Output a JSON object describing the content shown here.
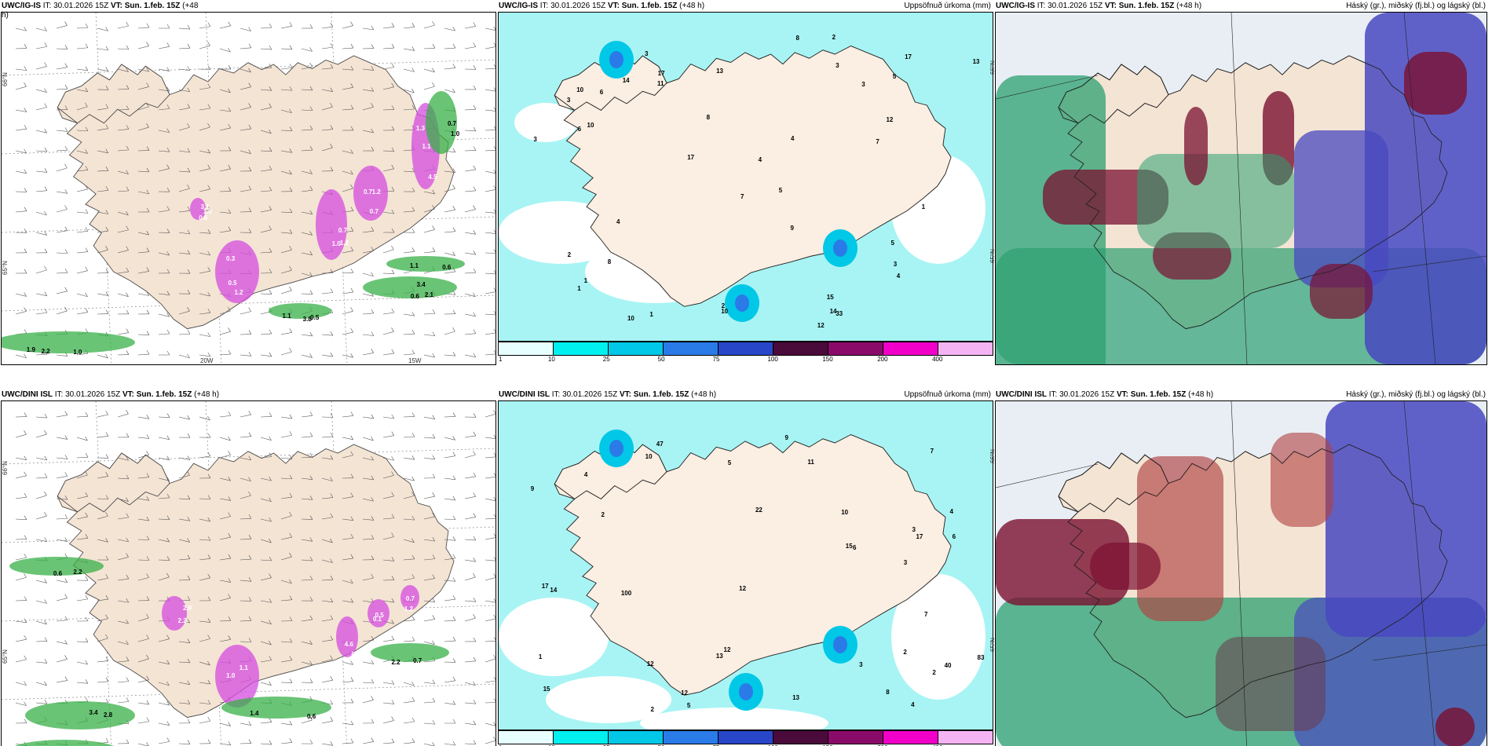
{
  "rows": [
    {
      "wind_panel": {
        "title_model": "UWC/IG-IS",
        "title_it": " IT: 30.01.2026 15Z ",
        "title_vt": "VT: Sun. 1.feb. 15Z",
        "title_lead": " (+48",
        "title_lead_wrap": "h)"
      },
      "precip_panel": {
        "title_model": "UWC/IG-IS",
        "title_it": " IT: 30.01.2026 15Z ",
        "title_vt": "VT: Sun. 1.feb. 15Z",
        "title_lead": " (+48 h)",
        "right_title": "Uppsöfnuð úrkoma (mm)"
      },
      "cloud_panel": {
        "title_model": "UWC/IG-IS",
        "title_it": " IT: 30.01.2026 15Z ",
        "title_vt": "VT: Sun. 1.feb. 15Z",
        "title_lead": " (+48 h)",
        "right_title": "Háský (gr.), miðský (fj.bl.) og lágský (bl.)"
      },
      "wind_values": [
        "1.2",
        "1.0",
        "1.2",
        "1.3",
        "1.0",
        "1.9",
        "0.6",
        "1.1",
        "0.7",
        "1.1",
        "0.5",
        "1.2",
        "0.7",
        "4.5",
        "3.1",
        "1.0",
        "2.1",
        "0.5",
        "1.0",
        "0.6",
        "0.3",
        "0.7",
        "0.7",
        "1.1",
        "0.6",
        "2.2",
        "3.4",
        "3.8"
      ],
      "precip_values": [
        "3",
        "12",
        "14",
        "3",
        "5",
        "1",
        "4",
        "7",
        "3",
        "3",
        "1",
        "2",
        "4",
        "6",
        "2",
        "5",
        "7",
        "17",
        "10",
        "8",
        "8",
        "10",
        "17",
        "15",
        "14",
        "13",
        "17",
        "13",
        "9",
        "10",
        "6",
        "4",
        "3",
        "5",
        "2",
        "1",
        "12",
        "33",
        "8",
        "3",
        "4",
        "1",
        "11",
        "10"
      ]
    },
    {
      "wind_panel": {
        "title_model": "UWC/DINI ISL",
        "title_it": " IT: 30.01.2026 15Z ",
        "title_vt": "VT: Sun. 1.feb. 15Z",
        "title_lead": " (+48 h)"
      },
      "precip_panel": {
        "title_model": "UWC/DINI ISL",
        "title_it": " IT: 30.01.2026 15Z ",
        "title_vt": "VT: Sun. 1.feb. 15Z",
        "title_lead": " (+48 h)",
        "right_title": "Uppsöfnuð úrkoma (mm)"
      },
      "cloud_panel": {
        "title_model": "UWC/DINI ISL",
        "title_it": " IT: 30.01.2026 15Z ",
        "title_vt": "VT: Sun. 1.feb. 15Z",
        "title_lead": " (+48 h)",
        "right_title": "Háský (gr.), miðský (fj.bl.) og lágský (bl.)"
      },
      "wind_values": [
        "1.1",
        "2.2",
        "4.6",
        "0.1",
        "0.7",
        "0.6",
        "2.8",
        "0.6",
        "0.7",
        "0.8",
        "1.0",
        "2.9",
        "0.9",
        "0.5",
        "1.2",
        "2.2",
        "3.4",
        "1.4",
        "2.2"
      ],
      "precip_values": [
        "2",
        "4",
        "40",
        "22",
        "15",
        "47",
        "3",
        "12",
        "7",
        "2",
        "6",
        "9",
        "3",
        "5",
        "1",
        "4",
        "2",
        "10",
        "12",
        "17",
        "17",
        "14",
        "13",
        "15",
        "12",
        "13",
        "9",
        "11",
        "10",
        "83",
        "100",
        "3",
        "2",
        "12",
        "7",
        "8",
        "6",
        "5",
        "4"
      ]
    }
  ],
  "axes": {
    "lat_66": "66°N",
    "lat_65": "65°N",
    "lon_20": "20W",
    "lon_15": "15W"
  },
  "colorbar": {
    "ticks": [
      "1",
      "10",
      "25",
      "50",
      "75",
      "100",
      "150",
      "200",
      "400"
    ],
    "colors": [
      "#e8ffff",
      "#00f0f0",
      "#00c8e6",
      "#2a7ae8",
      "#2846c8",
      "#4a0a3a",
      "#8a0a6a",
      "#f000c8",
      "#f4b4f4"
    ]
  },
  "colors": {
    "land": "#f4e4d4",
    "precip_land": "#fbeee2",
    "sea_precip": "#a8f4f4",
    "pink_precip": "#d64ce0",
    "green_precip": "#38b048",
    "cloud_high": "#7a1030",
    "cloud_mid": "#2ca070",
    "cloud_low": "#4848c0"
  }
}
